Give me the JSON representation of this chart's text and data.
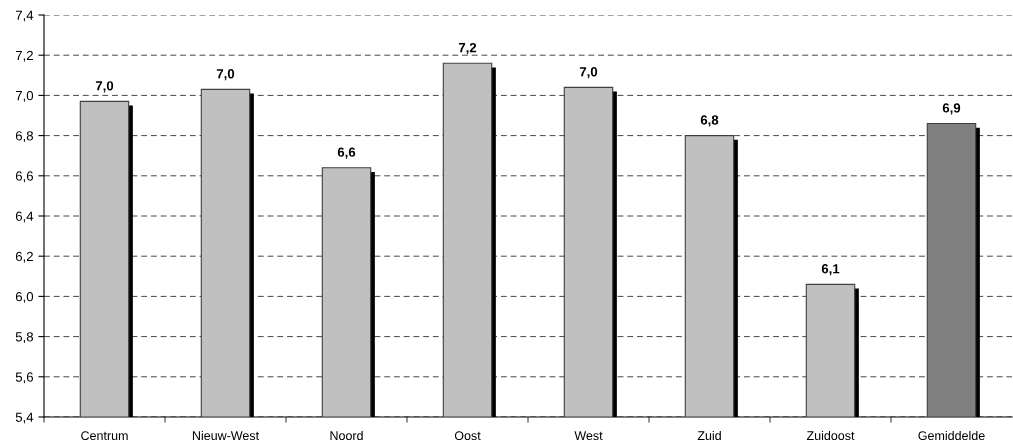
{
  "chart_data": {
    "type": "bar",
    "categories": [
      "Centrum",
      "Nieuw-West",
      "Noord",
      "Oost",
      "West",
      "Zuid",
      "Zuidoost",
      "Gemiddelde"
    ],
    "values": [
      6.97,
      7.03,
      6.64,
      7.16,
      7.04,
      6.8,
      6.06,
      6.86
    ],
    "value_labels": [
      "7,0",
      "7,0",
      "6,6",
      "7,2",
      "7,0",
      "6,8",
      "6,1",
      "6,9"
    ],
    "colors": [
      "#c0c0c0",
      "#c0c0c0",
      "#c0c0c0",
      "#c0c0c0",
      "#c0c0c0",
      "#c0c0c0",
      "#c0c0c0",
      "#808080"
    ],
    "ylim": [
      5.4,
      7.4
    ],
    "yticks": [
      {
        "value": 5.4,
        "label": "5,4"
      },
      {
        "value": 5.6,
        "label": "5,6"
      },
      {
        "value": 5.8,
        "label": "5,8"
      },
      {
        "value": 6.0,
        "label": "6,0"
      },
      {
        "value": 6.2,
        "label": "6,2"
      },
      {
        "value": 6.4,
        "label": "6,4"
      },
      {
        "value": 6.6,
        "label": "6,6"
      },
      {
        "value": 6.8,
        "label": "6,8"
      },
      {
        "value": 7.0,
        "label": "7,0"
      },
      {
        "value": 7.2,
        "label": "7,2"
      },
      {
        "value": 7.4,
        "label": "7,4"
      }
    ],
    "grid": "y"
  }
}
